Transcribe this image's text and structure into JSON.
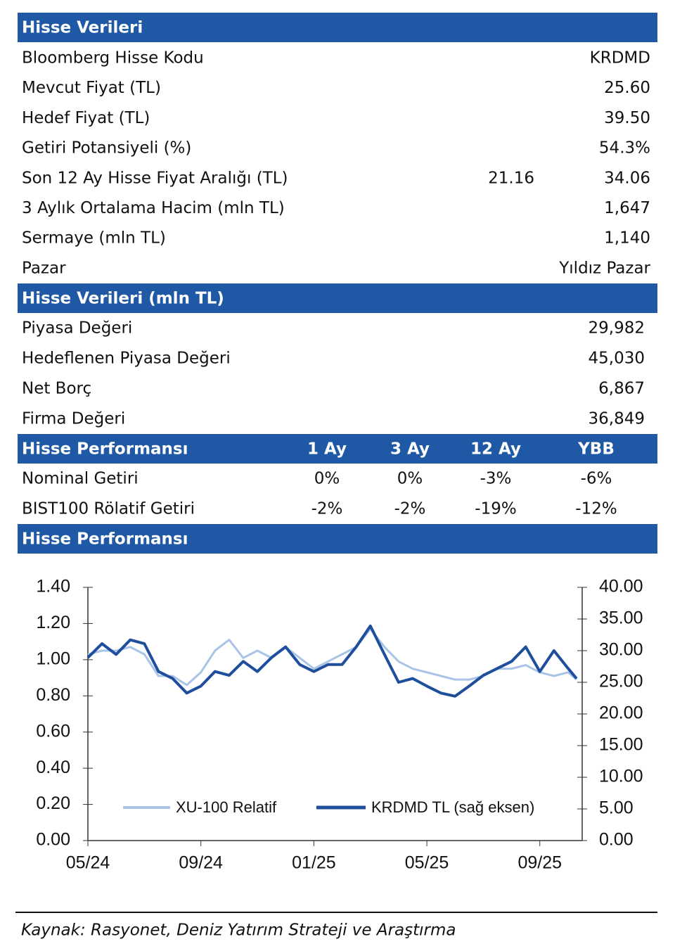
{
  "stock_data": {
    "title": "Hisse Verileri",
    "rows": [
      {
        "label": "Bloomberg Hisse Kodu",
        "values": [
          "KRDMD"
        ]
      },
      {
        "label": "Mevcut Fiyat (TL)",
        "values": [
          "25.60"
        ]
      },
      {
        "label": "Hedef Fiyat (TL)",
        "values": [
          "39.50"
        ]
      },
      {
        "label": "Getiri Potansiyeli (%)",
        "values": [
          "54.3%"
        ]
      },
      {
        "label": "Son 12 Ay Hisse Fiyat Aralığı (TL)",
        "values": [
          "21.16",
          "34.06"
        ]
      },
      {
        "label": "3 Aylık Ortalama Hacim (mln TL)",
        "values": [
          "1,647"
        ]
      },
      {
        "label": "Sermaye (mln TL)",
        "values": [
          "1,140"
        ]
      },
      {
        "label": "Pazar",
        "values": [
          "Yıldız Pazar"
        ]
      }
    ]
  },
  "market_data": {
    "title": "Hisse Verileri (mln TL)",
    "rows": [
      {
        "label": "Piyasa Değeri",
        "values": [
          "29,982"
        ]
      },
      {
        "label": "Hedeflenen Piyasa Değeri",
        "values": [
          "45,030"
        ]
      },
      {
        "label": "Net Borç",
        "values": [
          "6,867"
        ]
      },
      {
        "label": "Firma Değeri",
        "values": [
          "36,849"
        ]
      }
    ]
  },
  "performance": {
    "title": "Hisse Performansı",
    "columns": [
      "1 Ay",
      "3 Ay",
      "12 Ay",
      "YBB"
    ],
    "rows": [
      {
        "label": "Nominal Getiri",
        "values": [
          "0%",
          "0%",
          "-3%",
          "-6%"
        ]
      },
      {
        "label": "BIST100 Rölatif Getiri",
        "values": [
          "-2%",
          "-2%",
          "-19%",
          "-12%"
        ]
      }
    ]
  },
  "chart_data": {
    "type": "line",
    "title": "Hisse Performansı",
    "x": [
      0,
      0.5,
      1,
      1.5,
      2,
      2.5,
      3,
      3.5,
      4,
      4.5,
      5,
      5.5,
      6,
      6.5,
      7,
      7.5,
      8,
      8.5,
      9,
      9.5,
      10,
      10.5,
      11,
      11.5,
      12,
      12.5,
      13,
      13.5,
      14,
      14.5,
      15,
      15.5,
      16,
      16.5,
      17,
      17.3
    ],
    "xlim": [
      0,
      17.5
    ],
    "xticks": [
      {
        "value": 0,
        "label": "05/24"
      },
      {
        "value": 4,
        "label": "09/24"
      },
      {
        "value": 8,
        "label": "01/25"
      },
      {
        "value": 12,
        "label": "05/25"
      },
      {
        "value": 16,
        "label": "09/25"
      }
    ],
    "ylim": [
      0,
      1.4
    ],
    "yticks": [
      {
        "value": 0,
        "label": "0.00"
      },
      {
        "value": 0.2,
        "label": "0.20"
      },
      {
        "value": 0.4,
        "label": "0.40"
      },
      {
        "value": 0.6,
        "label": "0.60"
      },
      {
        "value": 0.8,
        "label": "0.80"
      },
      {
        "value": 1,
        "label": "1.00"
      },
      {
        "value": 1.2,
        "label": "1.20"
      },
      {
        "value": 1.4,
        "label": "1.40"
      }
    ],
    "y2lim": [
      0,
      40
    ],
    "y2ticks": [
      {
        "value": 0,
        "label": "0.00"
      },
      {
        "value": 5,
        "label": "5.00"
      },
      {
        "value": 10,
        "label": "10.00"
      },
      {
        "value": 15,
        "label": "15.00"
      },
      {
        "value": 20,
        "label": "20.00"
      },
      {
        "value": 25,
        "label": "25.00"
      },
      {
        "value": 30,
        "label": "30.00"
      },
      {
        "value": 35,
        "label": "35.00"
      },
      {
        "value": 40,
        "label": "40.00"
      }
    ],
    "series": [
      {
        "name": "XU-100 Relatif",
        "color": "#a9c4e6",
        "values": [
          1.03,
          1.05,
          1.05,
          1.07,
          1.03,
          0.91,
          0.91,
          0.86,
          0.93,
          1.05,
          1.11,
          1.01,
          1.05,
          1.01,
          1.07,
          1.01,
          0.95,
          0.99,
          1.03,
          1.07,
          1.17,
          1.07,
          0.99,
          0.95,
          0.93,
          0.91,
          0.89,
          0.89,
          0.91,
          0.95,
          0.95,
          0.97,
          0.93,
          0.91,
          0.93,
          0.89
        ]
      },
      {
        "name": "KRDMD TL (sağ eksen)",
        "color": "#1f4e9c",
        "axis": "y2",
        "values": [
          28.9,
          31.1,
          29.4,
          31.7,
          31.1,
          26.7,
          25.6,
          23.3,
          24.4,
          26.7,
          26.1,
          28.3,
          26.7,
          28.9,
          30.6,
          27.8,
          26.7,
          27.8,
          27.8,
          30.6,
          33.9,
          29.4,
          25,
          25.6,
          24.4,
          23.3,
          22.8,
          24.4,
          26.1,
          27.2,
          28.3,
          30.6,
          26.7,
          30,
          27.2,
          25.6
        ]
      }
    ]
  },
  "source": "Kaynak: Rasyonet, Deniz Yatırım Strateji ve Araştırma"
}
